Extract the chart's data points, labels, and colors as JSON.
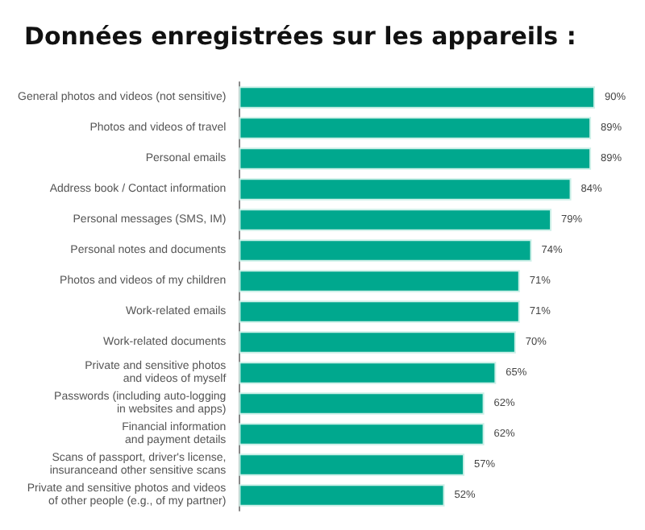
{
  "chart_data": {
    "type": "bar",
    "orientation": "horizontal",
    "title": "Données enregistrées sur les appareils :",
    "categories": [
      "General photos and videos (not sensitive)",
      "Photos and videos of travel",
      "Personal emails",
      "Address book / Contact information",
      "Personal messages (SMS, IM)",
      "Personal notes and documents",
      "Photos and videos of my children",
      "Work-related emails",
      "Work-related documents",
      "Private and sensitive photos\nand videos of myself",
      "Passwords (including auto-logging\nin websites and apps)",
      "Financial information\nand payment details",
      "Scans of passport, driver's license,\ninsuranceand other sensitive scans",
      "Private and sensitive photos and videos\nof other people (e.g., of my partner)"
    ],
    "values": [
      90,
      89,
      89,
      84,
      79,
      74,
      71,
      71,
      70,
      65,
      62,
      62,
      57,
      52
    ],
    "value_labels": [
      "90%",
      "89%",
      "89%",
      "84%",
      "79%",
      "74%",
      "71%",
      "71%",
      "70%",
      "65%",
      "62%",
      "62%",
      "57%",
      "52%"
    ],
    "color": "#00a88e"
  }
}
